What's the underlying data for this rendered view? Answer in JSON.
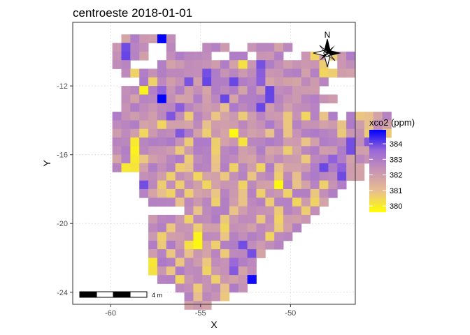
{
  "chart_data": {
    "type": "heatmap",
    "title": "centroeste 2018-01-01",
    "xlabel": "X",
    "ylabel": "Y",
    "x_ticks": [
      -60,
      -55,
      -50
    ],
    "y_ticks": [
      -12,
      -16,
      -20,
      -24
    ],
    "xlim": [
      -62.1,
      -46.4
    ],
    "ylim": [
      -24.7,
      -8.3
    ],
    "grid": true,
    "cell_size_deg": 0.5,
    "legend": {
      "title": "xco2 (ppm)",
      "placement": "right",
      "ticks": [
        380,
        381,
        382,
        383,
        384
      ],
      "range": [
        379.6,
        384.9
      ],
      "colors": [
        "#ffff00",
        "#e8c08e",
        "#c894b4",
        "#9a68d8",
        "#0000ff"
      ]
    },
    "scalebar": {
      "label": "4 m"
    },
    "north_arrow": {
      "label": "N"
    },
    "grid_origin": {
      "lon": -61.4,
      "lat": -9.0
    },
    "rows": [
      "    ....w.",
      "   .q..  .   ...  ..... ",
      "   .q..  .....  .. ...  .a.a..  ",
      "   ..   .........c.q......a ..",
      "    .a.......q.....q......aa..",
      "      .a...q.q..q..q.......  ",
      "    ..b.q...........q.....   ",
      "    ....w......q....q.......  ",
      "    ......q....a...q......   ",
      "   ......q.a..a..a....a.a.a. .aa..",
      "   .....a....a........a.....a..a..",
      "   ...a...q..a..b...a.a.....a..a.a",
      "   ..b.....a..a..b......a....q.q.  ",
      "   ..b....a...a.......a......q...",
      "   ..ba....a..a.........a..q....",
      "   .bb....aa..a.a..a.a....q.q..",
      "      ...a..a..a..a..a.a....q..",
      "      q.a.a..a...a...b.a..a..",
      "      ..aa.a..a..a.a..a..a..",
      "       ...a...a..a..a..a.a.",
      "           .a...a....a..a.",
      "       ....a...a...a.a...",
      "       ..a..a..a.....a..",
      "       .a...b..a....a..",
      "       .a..bb.a..q....",
      "       ..a.a...a..q.",
      "       b..a..a..q..",
      "       b.a...a..q..",
      "        ..a...a...w",
      "          ..a..a..",
      "           .a..a",
      "           ..."
    ]
  }
}
